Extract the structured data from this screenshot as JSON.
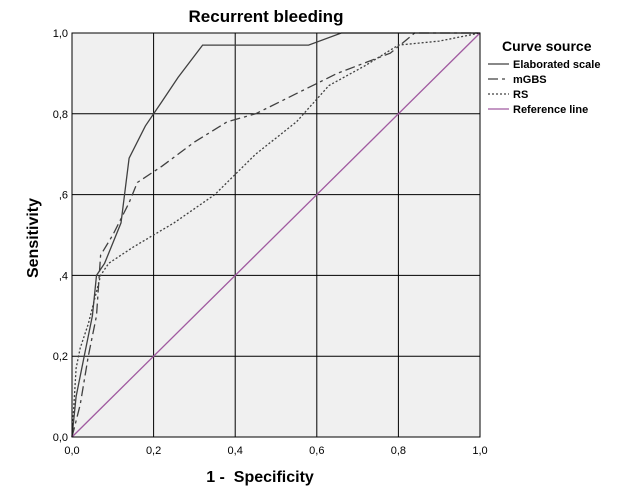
{
  "chart_data": {
    "type": "line",
    "title": "Recurrent bleeding",
    "xlabel": "1 -  Specificity",
    "ylabel": "Sensitivity",
    "xlim": [
      0,
      1
    ],
    "ylim": [
      0,
      1
    ],
    "x_ticks": [
      0,
      0.2,
      0.4,
      0.6,
      0.8,
      1.0
    ],
    "y_ticks": [
      0,
      0.2,
      0.4,
      0.6,
      0.8,
      1.0
    ],
    "x_tick_labels": [
      "0,0",
      "0,2",
      "0,4",
      "0,6",
      "0,8",
      "1,0"
    ],
    "y_tick_labels": [
      "0,0",
      "0,2",
      ",4",
      ",6",
      "0,8",
      "1,0"
    ],
    "grid": true,
    "legend_title": "Curve source",
    "legend_position": "right",
    "series": [
      {
        "name": "Elaborated scale",
        "color": "#404040",
        "style": "solid",
        "points": [
          [
            0,
            0
          ],
          [
            0.01,
            0.1
          ],
          [
            0.03,
            0.2
          ],
          [
            0.05,
            0.3
          ],
          [
            0.06,
            0.4
          ],
          [
            0.08,
            0.43
          ],
          [
            0.1,
            0.48
          ],
          [
            0.12,
            0.53
          ],
          [
            0.14,
            0.69
          ],
          [
            0.18,
            0.77
          ],
          [
            0.22,
            0.83
          ],
          [
            0.26,
            0.89
          ],
          [
            0.32,
            0.97
          ],
          [
            0.4,
            0.97
          ],
          [
            0.58,
            0.97
          ],
          [
            0.66,
            1.0
          ],
          [
            1.0,
            1.0
          ]
        ]
      },
      {
        "name": "mGBS",
        "color": "#404040",
        "style": "dashdot",
        "points": [
          [
            0,
            0
          ],
          [
            0.02,
            0.08
          ],
          [
            0.04,
            0.2
          ],
          [
            0.06,
            0.3
          ],
          [
            0.07,
            0.45
          ],
          [
            0.1,
            0.5
          ],
          [
            0.14,
            0.58
          ],
          [
            0.16,
            0.63
          ],
          [
            0.22,
            0.67
          ],
          [
            0.3,
            0.73
          ],
          [
            0.38,
            0.78
          ],
          [
            0.45,
            0.8
          ],
          [
            0.55,
            0.85
          ],
          [
            0.65,
            0.9
          ],
          [
            0.78,
            0.95
          ],
          [
            0.84,
            1.0
          ],
          [
            1.0,
            1.0
          ]
        ]
      },
      {
        "name": "RS",
        "color": "#404040",
        "style": "dotted",
        "points": [
          [
            0,
            0
          ],
          [
            0.01,
            0.17
          ],
          [
            0.02,
            0.22
          ],
          [
            0.04,
            0.28
          ],
          [
            0.07,
            0.4
          ],
          [
            0.09,
            0.43
          ],
          [
            0.15,
            0.47
          ],
          [
            0.25,
            0.53
          ],
          [
            0.35,
            0.6
          ],
          [
            0.45,
            0.7
          ],
          [
            0.55,
            0.78
          ],
          [
            0.63,
            0.87
          ],
          [
            0.72,
            0.92
          ],
          [
            0.8,
            0.97
          ],
          [
            0.9,
            0.98
          ],
          [
            1.0,
            1.0
          ]
        ]
      },
      {
        "name": "Reference line",
        "color": "#a05aa0",
        "style": "solid",
        "points": [
          [
            0,
            0
          ],
          [
            1,
            1
          ]
        ]
      }
    ]
  }
}
